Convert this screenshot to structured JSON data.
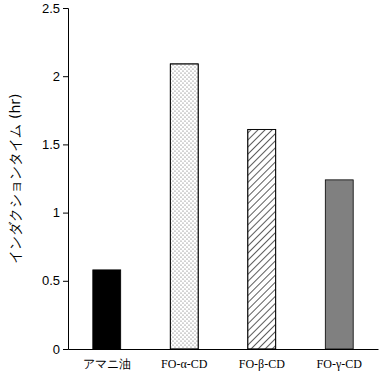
{
  "chart_data": {
    "type": "bar",
    "y_label": "インダクションタイム (hr)",
    "categories": [
      "アマニ油",
      "FO-α-CD",
      "FO-β-CD",
      "FO-γ-CD"
    ],
    "values": [
      0.58,
      2.09,
      1.61,
      1.24
    ],
    "colors": [
      "#000000",
      "#ffffff",
      "#ffffff",
      "#808080"
    ],
    "ylim": [
      0,
      2.5
    ],
    "yticks": [
      0,
      0.5,
      1,
      1.5,
      2,
      2.5
    ]
  }
}
